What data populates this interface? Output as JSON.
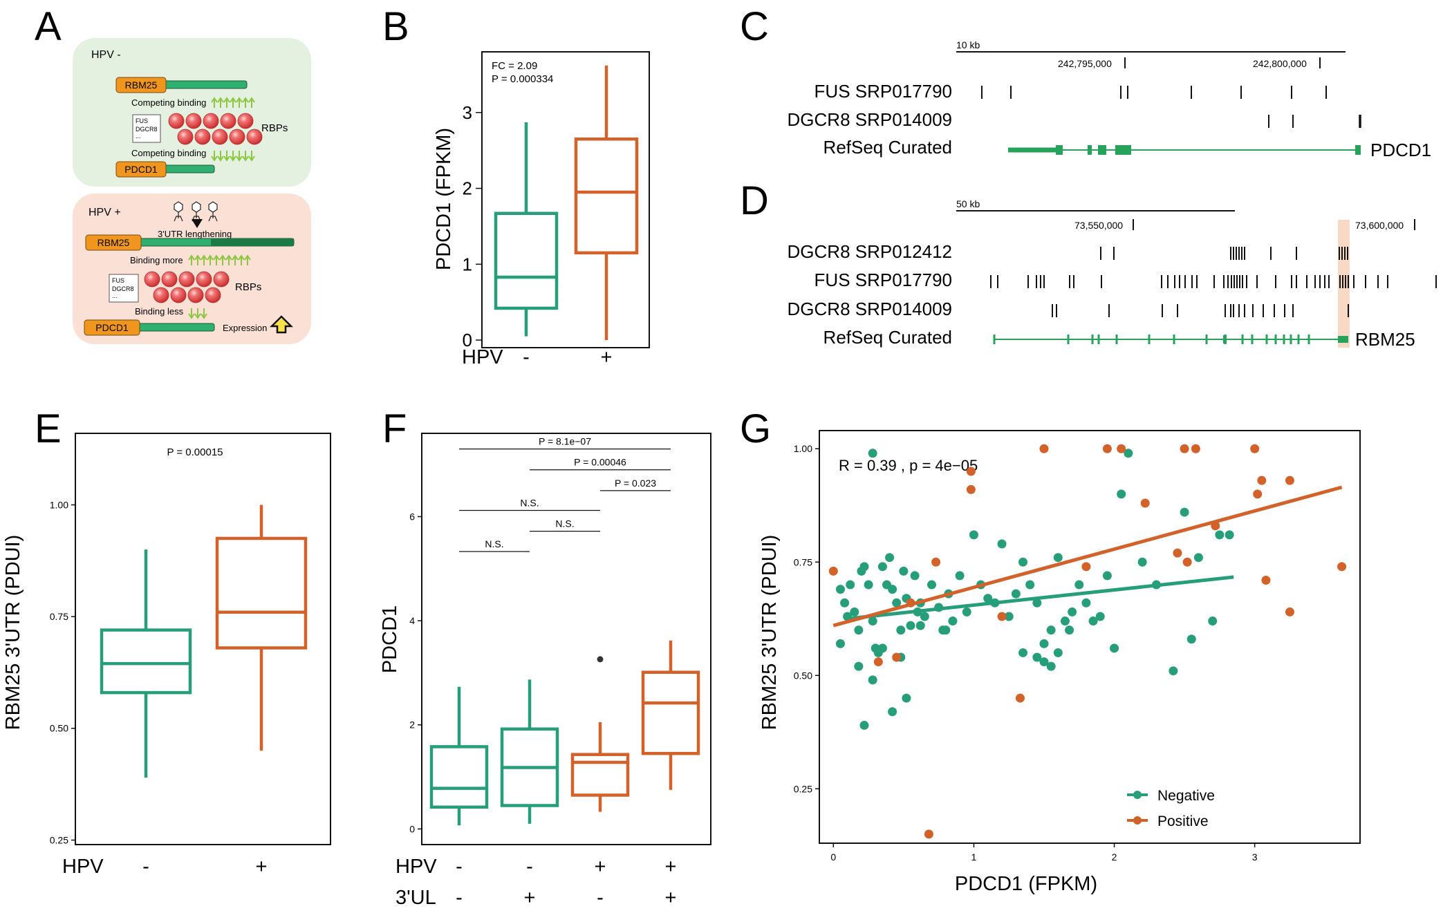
{
  "colors": {
    "neg": "#269e7a",
    "pos": "#d2622a",
    "rbpRed": "#e04545",
    "orange": "#f0961e",
    "green": "#27a25a",
    "panelNeg": "#e4f1e1",
    "panelPos": "#fbe0d6"
  },
  "panelA": {
    "letter": "A",
    "neg": {
      "title": "HPV -",
      "gene1": "RBM25",
      "comp1": "Competing binding",
      "box": [
        "FUS",
        "DGCR8",
        "..."
      ],
      "rbps": "RBPs",
      "comp2": "Competing binding",
      "gene2": "PDCD1"
    },
    "pos": {
      "title": "HPV +",
      "lengthening": "3'UTR lengthening",
      "gene1": "RBM25",
      "more": "Binding more",
      "box": [
        "FUS",
        "DGCR8",
        "..."
      ],
      "rbps": "RBPs",
      "less": "Binding less",
      "gene2": "PDCD1",
      "expression": "Expression"
    }
  },
  "panelB": {
    "letter": "B",
    "fc": "FC = 2.09",
    "p": "P = 0.000334",
    "ylabel": "PDCD1 (FPKM)",
    "hpvLabel": "HPV",
    "cats": [
      "-",
      "+"
    ]
  },
  "panelC": {
    "letter": "C",
    "scale": "10 kb",
    "pos1": "242,795,000",
    "pos2": "242,800,000",
    "tracks": [
      "FUS SRP017790",
      "DGCR8 SRP014009",
      "RefSeq Curated"
    ],
    "gene": "PDCD1"
  },
  "panelD": {
    "letter": "D",
    "scale": "50 kb",
    "pos1": "73,550,000",
    "pos2": "73,600,000",
    "tracks": [
      "DGCR8 SRP012412",
      "FUS SRP017790",
      "DGCR8 SRP014009",
      "RefSeq Curated"
    ],
    "gene": "RBM25"
  },
  "panelE": {
    "letter": "E",
    "p": "P = 0.00015",
    "ylabel": "RBM25 3'UTR (PDUI)",
    "hpvLabel": "HPV",
    "cats": [
      "-",
      "+"
    ],
    "ticks": [
      "0.25",
      "0.50",
      "0.75",
      "1.00"
    ]
  },
  "panelF": {
    "letter": "F",
    "ylabel": "PDCD1",
    "hpvLabel": "HPV",
    "ulLabel": "3'UL",
    "hpv": [
      "-",
      "-",
      "+",
      "+"
    ],
    "ul": [
      "-",
      "+",
      "-",
      "+"
    ],
    "ticks": [
      "0",
      "2",
      "4",
      "6"
    ],
    "sig": [
      "P = 8.1e−07",
      "P = 0.00046",
      "P = 0.023",
      "N.S.",
      "N.S.",
      "N.S."
    ]
  },
  "panelG": {
    "letter": "G",
    "stat": "R = 0.39 , p = 4e−05",
    "xlabel": "PDCD1 (FPKM)",
    "ylabel": "RBM25 3'UTR (PDUI)",
    "xticks": [
      "0",
      "1",
      "2",
      "3"
    ],
    "yticks": [
      "0.25",
      "0.50",
      "0.75",
      "1.00"
    ],
    "legend": [
      "Negative",
      "Positive"
    ]
  },
  "chart_data": [
    {
      "panel": "B",
      "type": "box",
      "categories": [
        "-",
        "+"
      ],
      "ylabel": "PDCD1 (FPKM)",
      "ylim": [
        -0.1,
        3.8
      ],
      "yticks": [
        0,
        1,
        2,
        3
      ],
      "boxes": [
        {
          "lower": 0.05,
          "q1": 0.42,
          "median": 0.83,
          "q3": 1.67,
          "upper": 2.87
        },
        {
          "lower": 0.0,
          "q1": 1.15,
          "median": 1.95,
          "q3": 2.65,
          "upper": 3.62
        }
      ],
      "annotations": [
        "FC = 2.09",
        "P = 0.000334"
      ]
    },
    {
      "panel": "E",
      "type": "box",
      "categories": [
        "-",
        "+"
      ],
      "ylabel": "RBM25 3'UTR (PDUI)",
      "ylim": [
        0.24,
        1.16
      ],
      "yticks": [
        0.25,
        0.5,
        0.75,
        1.0
      ],
      "boxes": [
        {
          "lower": 0.39,
          "q1": 0.58,
          "median": 0.645,
          "q3": 0.72,
          "upper": 0.9
        },
        {
          "lower": 0.45,
          "q1": 0.68,
          "median": 0.76,
          "q3": 0.925,
          "upper": 1.0
        }
      ],
      "annotations": [
        "P = 0.00015"
      ]
    },
    {
      "panel": "F",
      "type": "box",
      "categories": [
        "HPV- 3'UL-",
        "HPV- 3'UL+",
        "HPV+ 3'UL-",
        "HPV+ 3'UL+"
      ],
      "ylabel": "PDCD1",
      "ylim": [
        -0.3,
        7.6
      ],
      "yticks": [
        0,
        2,
        4,
        6
      ],
      "boxes": [
        {
          "lower": 0.07,
          "q1": 0.42,
          "median": 0.78,
          "q3": 1.58,
          "upper": 2.73
        },
        {
          "lower": 0.1,
          "q1": 0.45,
          "median": 1.18,
          "q3": 1.92,
          "upper": 2.87
        },
        {
          "lower": 0.33,
          "q1": 0.65,
          "median": 1.28,
          "q3": 1.43,
          "upper": 2.05,
          "outliers": [
            3.26
          ]
        },
        {
          "lower": 0.75,
          "q1": 1.45,
          "median": 2.42,
          "q3": 3.01,
          "upper": 3.62
        }
      ],
      "comparisons": [
        {
          "from": 1,
          "to": 4,
          "y": 7.3,
          "label": "P = 8.1e−07"
        },
        {
          "from": 2,
          "to": 4,
          "y": 6.9,
          "label": "P = 0.00046"
        },
        {
          "from": 3,
          "to": 4,
          "y": 6.5,
          "label": "P = 0.023"
        },
        {
          "from": 1,
          "to": 3,
          "y": 6.12,
          "label": "N.S."
        },
        {
          "from": 2,
          "to": 3,
          "y": 5.72,
          "label": "N.S."
        },
        {
          "from": 1,
          "to": 2,
          "y": 5.33,
          "label": "N.S."
        }
      ]
    },
    {
      "panel": "G",
      "type": "scatter",
      "xlabel": "PDCD1 (FPKM)",
      "ylabel": "RBM25 3'UTR (PDUI)",
      "xlim": [
        -0.1,
        3.75
      ],
      "ylim": [
        0.13,
        1.04
      ],
      "xticks": [
        0,
        1,
        2,
        3
      ],
      "yticks": [
        0.25,
        0.5,
        0.75,
        1.0
      ],
      "series": [
        {
          "name": "Negative",
          "points": [
            [
              0.28,
              0.99
            ],
            [
              0.05,
              0.69
            ],
            [
              0.08,
              0.66
            ],
            [
              0.1,
              0.63
            ],
            [
              0.12,
              0.7
            ],
            [
              0.15,
              0.64
            ],
            [
              0.18,
              0.6
            ],
            [
              0.2,
              0.73
            ],
            [
              0.22,
              0.74
            ],
            [
              0.25,
              0.7
            ],
            [
              0.28,
              0.62
            ],
            [
              0.3,
              0.56
            ],
            [
              0.32,
              0.55
            ],
            [
              0.35,
              0.74
            ],
            [
              0.38,
              0.7
            ],
            [
              0.4,
              0.76
            ],
            [
              0.42,
              0.69
            ],
            [
              0.45,
              0.66
            ],
            [
              0.48,
              0.6
            ],
            [
              0.5,
              0.73
            ],
            [
              0.52,
              0.67
            ],
            [
              0.55,
              0.61
            ],
            [
              0.58,
              0.72
            ],
            [
              0.6,
              0.64
            ],
            [
              0.62,
              0.66
            ],
            [
              0.65,
              0.63
            ],
            [
              0.7,
              0.7
            ],
            [
              0.75,
              0.65
            ],
            [
              0.78,
              0.6
            ],
            [
              0.82,
              0.68
            ],
            [
              0.85,
              0.62
            ],
            [
              0.9,
              0.72
            ],
            [
              0.95,
              0.64
            ],
            [
              1.0,
              0.81
            ],
            [
              1.05,
              0.7
            ],
            [
              1.1,
              0.67
            ],
            [
              1.15,
              0.66
            ],
            [
              1.2,
              0.79
            ],
            [
              1.25,
              0.63
            ],
            [
              1.3,
              0.68
            ],
            [
              1.35,
              0.75
            ],
            [
              1.4,
              0.7
            ],
            [
              1.45,
              0.66
            ],
            [
              1.5,
              0.57
            ],
            [
              1.55,
              0.6
            ],
            [
              1.6,
              0.76
            ],
            [
              1.65,
              0.62
            ],
            [
              1.7,
              0.64
            ],
            [
              1.75,
              0.7
            ],
            [
              1.8,
              0.66
            ],
            [
              1.85,
              0.62
            ],
            [
              1.9,
              0.63
            ],
            [
              1.95,
              0.72
            ],
            [
              2.0,
              0.56
            ],
            [
              2.05,
              0.9
            ],
            [
              2.1,
              0.99
            ],
            [
              2.2,
              0.75
            ],
            [
              2.3,
              0.7
            ],
            [
              2.42,
              0.51
            ],
            [
              2.5,
              0.86
            ],
            [
              2.55,
              0.58
            ],
            [
              2.6,
              0.76
            ],
            [
              2.7,
              0.62
            ],
            [
              2.75,
              0.81
            ],
            [
              2.82,
              0.81
            ],
            [
              0.05,
              0.57
            ],
            [
              0.18,
              0.52
            ],
            [
              0.22,
              0.39
            ],
            [
              0.28,
              0.49
            ],
            [
              0.35,
              0.56
            ],
            [
              0.42,
              0.42
            ],
            [
              0.48,
              0.54
            ],
            [
              0.52,
              0.45
            ],
            [
              0.62,
              0.61
            ],
            [
              0.8,
              0.6
            ],
            [
              1.35,
              0.55
            ],
            [
              1.45,
              0.54
            ],
            [
              1.5,
              0.53
            ],
            [
              1.55,
              0.52
            ],
            [
              1.6,
              0.55
            ],
            [
              1.68,
              0.6
            ]
          ],
          "fit": [
            [
              0.1,
              0.625
            ],
            [
              2.85,
              0.717
            ]
          ]
        },
        {
          "name": "Positive",
          "points": [
            [
              0.0,
              0.73
            ],
            [
              0.32,
              0.53
            ],
            [
              0.45,
              0.54
            ],
            [
              0.55,
              0.66
            ],
            [
              0.68,
              0.15
            ],
            [
              0.73,
              0.75
            ],
            [
              0.98,
              0.91
            ],
            [
              0.98,
              0.95
            ],
            [
              1.2,
              0.63
            ],
            [
              1.33,
              0.45
            ],
            [
              1.5,
              1.0
            ],
            [
              1.95,
              1.0
            ],
            [
              1.8,
              0.74
            ],
            [
              2.05,
              1.0
            ],
            [
              2.22,
              0.88
            ],
            [
              2.45,
              0.77
            ],
            [
              2.5,
              1.0
            ],
            [
              2.58,
              1.0
            ],
            [
              2.52,
              0.75
            ],
            [
              2.72,
              0.83
            ],
            [
              3.0,
              1.0
            ],
            [
              3.02,
              0.9
            ],
            [
              3.05,
              0.93
            ],
            [
              3.08,
              0.71
            ],
            [
              3.25,
              0.93
            ],
            [
              3.25,
              0.64
            ],
            [
              3.62,
              0.74
            ]
          ],
          "fit": [
            [
              0.0,
              0.61
            ],
            [
              3.62,
              0.915
            ]
          ]
        }
      ],
      "annotations": [
        "R = 0.39 , p = 4e−05"
      ],
      "legend_position": "bottom-right"
    }
  ]
}
